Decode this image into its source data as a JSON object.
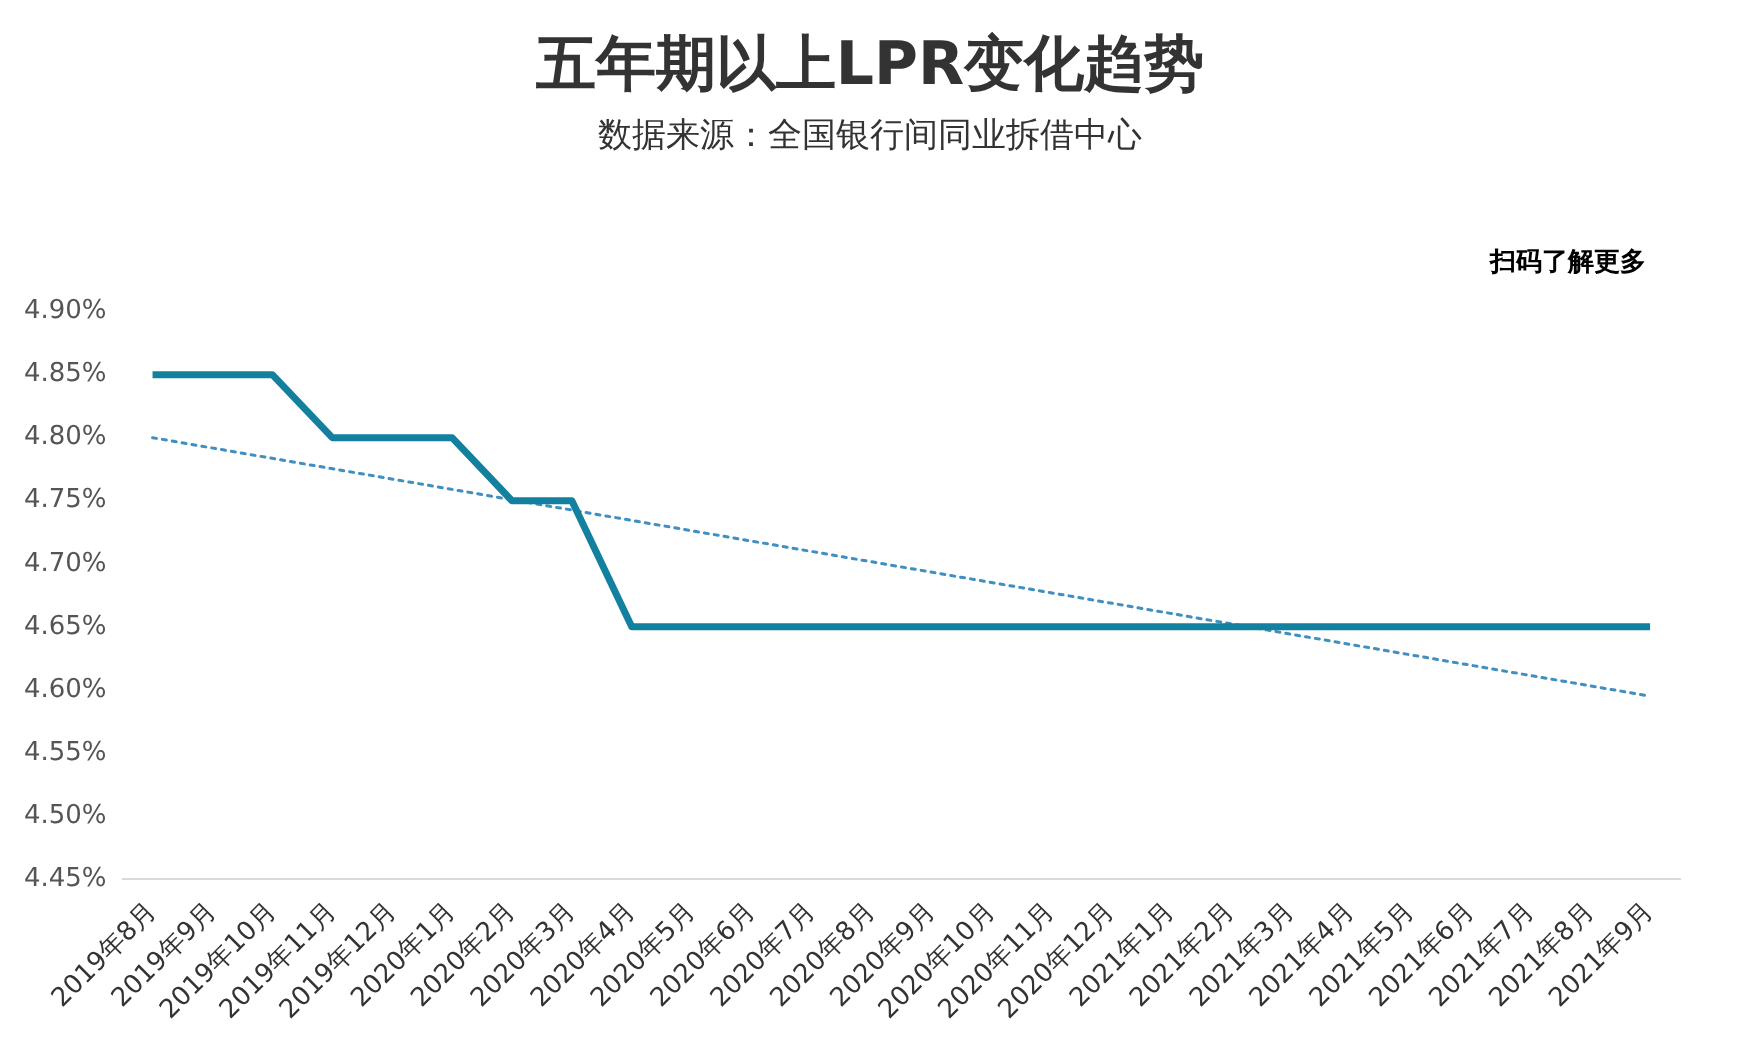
{
  "chart_data": {
    "type": "line",
    "title": "五年期以上LPR变化趋势",
    "subtitle": "数据来源：全国银行间同业拆借中心",
    "annotations": [
      "扫码了解更多"
    ],
    "categories": [
      "2019年8月",
      "2019年9月",
      "2019年10月",
      "2019年11月",
      "2019年12月",
      "2020年1月",
      "2020年2月",
      "2020年3月",
      "2020年4月",
      "2020年5月",
      "2020年6月",
      "2020年7月",
      "2020年8月",
      "2020年9月",
      "2020年10月",
      "2020年11月",
      "2020年12月",
      "2021年1月",
      "2021年2月",
      "2021年3月",
      "2021年4月",
      "2021年5月",
      "2021年6月",
      "2021年7月",
      "2021年8月",
      "2021年9月"
    ],
    "series": [
      {
        "color": "#13809f",
        "line_style": "solid",
        "values": [
          4.85,
          4.85,
          4.85,
          4.8,
          4.8,
          4.8,
          4.75,
          4.75,
          4.65,
          4.65,
          4.65,
          4.65,
          4.65,
          4.65,
          4.65,
          4.65,
          4.65,
          4.65,
          4.65,
          4.65,
          4.65,
          4.65,
          4.65,
          4.65,
          4.65,
          4.65
        ]
      },
      {
        "type": "line",
        "color": "#3f8fc0",
        "line_style": "dotted",
        "x": [
          "2019年8月",
          "2021年9月"
        ],
        "values": [
          4.8,
          4.595
        ]
      }
    ],
    "ylim": [
      4.45,
      4.9
    ],
    "yticks": [
      {
        "value": 4.45,
        "label": "4.45%"
      },
      {
        "value": 4.5,
        "label": "4.50%"
      },
      {
        "value": 4.55,
        "label": "4.55%"
      },
      {
        "value": 4.6,
        "label": "4.60%"
      },
      {
        "value": 4.65,
        "label": "4.65%"
      },
      {
        "value": 4.7,
        "label": "4.70%"
      },
      {
        "value": 4.75,
        "label": "4.75%"
      },
      {
        "value": 4.8,
        "label": "4.80%"
      },
      {
        "value": 4.85,
        "label": "4.85%"
      },
      {
        "value": 4.9,
        "label": "4.90%"
      }
    ],
    "grid": false,
    "legend": false,
    "marker": "none"
  }
}
